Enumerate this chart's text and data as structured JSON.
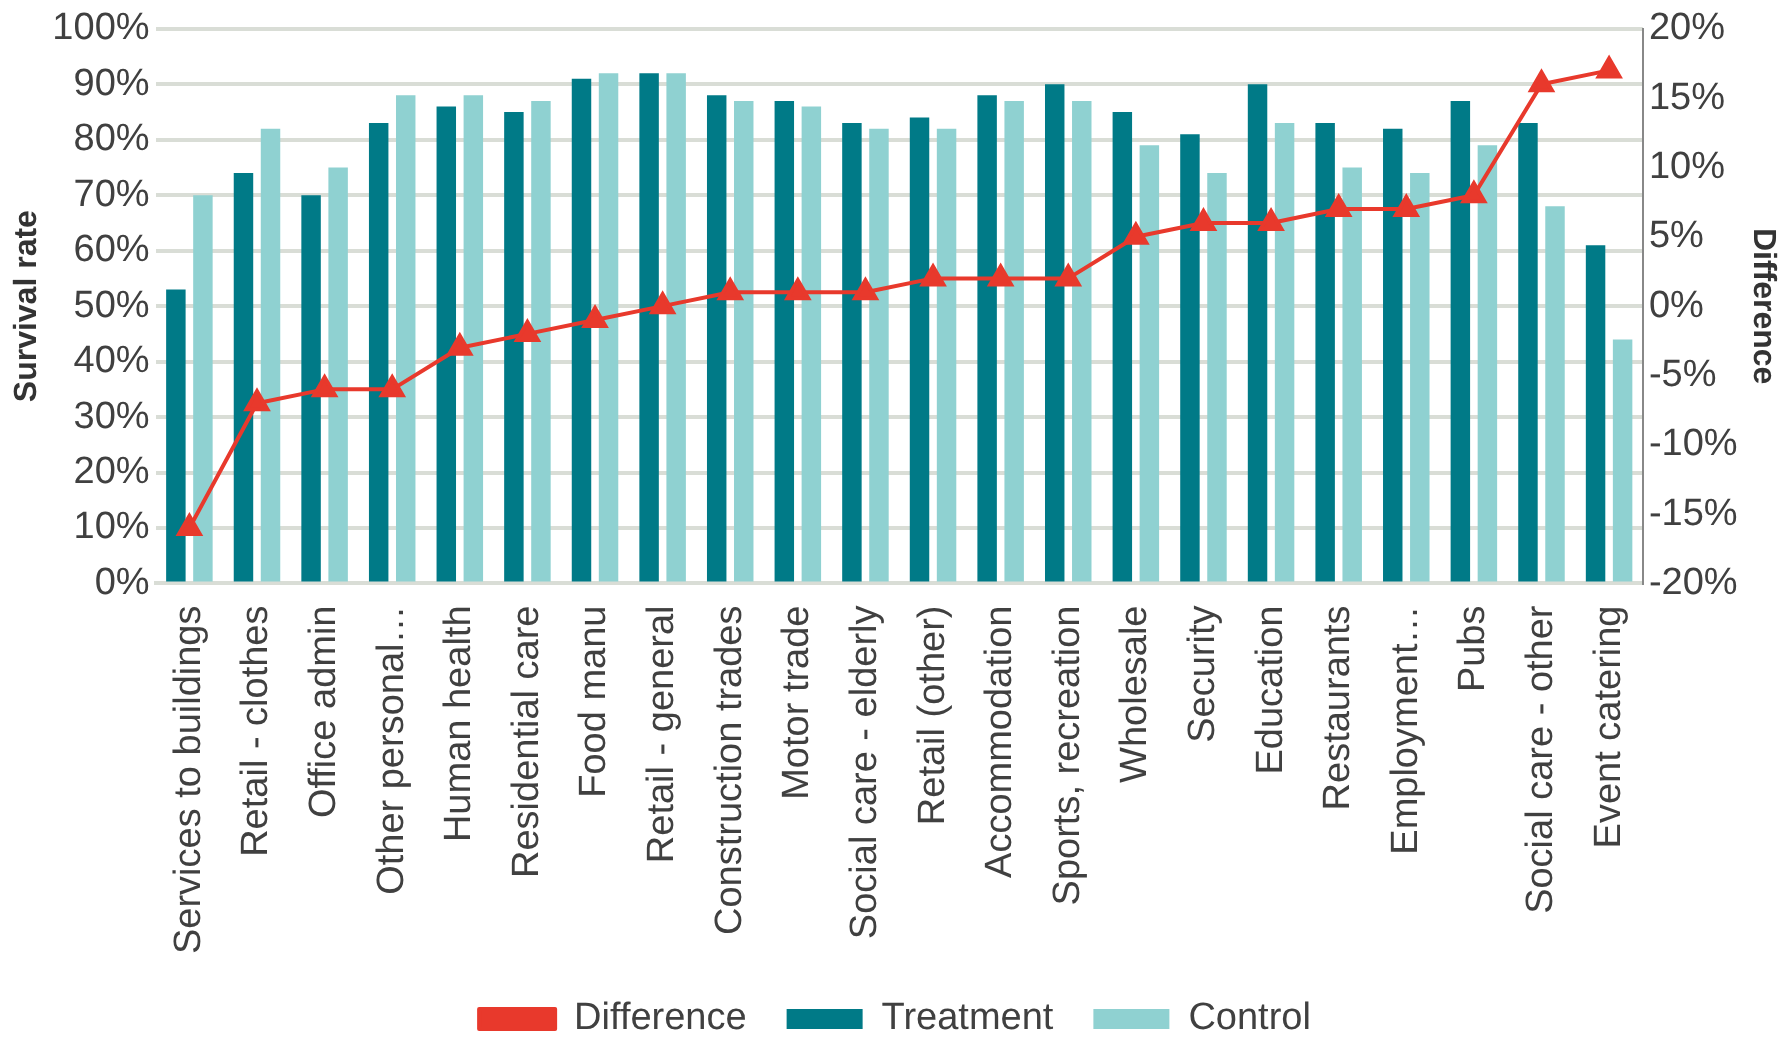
{
  "chart_data": {
    "type": "bar",
    "ylabel": "Survival rate",
    "y2label": "Difference",
    "categories": [
      "Services to buildings",
      "Retail - clothes",
      "Office admin",
      "Other personal…",
      "Human health",
      "Residential care",
      "Food manu",
      "Retail - general",
      "Construction trades",
      "Motor trade",
      "Social care - elderly",
      "Retail (other)",
      "Accommodation",
      "Sports, recreation",
      "Wholesale",
      "Security",
      "Education",
      "Restaurants",
      "Employment…",
      "Pubs",
      "Social care - other",
      "Event catering"
    ],
    "series": [
      {
        "name": "Treatment",
        "color": "#007a87",
        "values": [
          53,
          74,
          70,
          83,
          86,
          85,
          91,
          92,
          88,
          87,
          83,
          84,
          88,
          90,
          85,
          81,
          90,
          83,
          82,
          87,
          83,
          61
        ]
      },
      {
        "name": "Control",
        "color": "#8fd1d1",
        "values": [
          70,
          82,
          75,
          88,
          88,
          87,
          92,
          92,
          87,
          86,
          82,
          82,
          87,
          87,
          79,
          74,
          83,
          75,
          74,
          79,
          68,
          44
        ]
      },
      {
        "name": "Difference",
        "type": "line",
        "axis": "y2",
        "color": "#e8392c",
        "marker": "triangle",
        "values": [
          -16,
          -7,
          -6,
          -6,
          -3,
          -2,
          -1,
          0,
          1,
          1,
          1,
          2,
          2,
          2,
          5,
          6,
          6,
          7,
          7,
          8,
          16,
          17
        ]
      }
    ],
    "ylim": [
      0,
      100
    ],
    "yticks": [
      {
        "value": 0,
        "label": "0%"
      },
      {
        "value": 10,
        "label": "10%"
      },
      {
        "value": 20,
        "label": "20%"
      },
      {
        "value": 30,
        "label": "30%"
      },
      {
        "value": 40,
        "label": "40%"
      },
      {
        "value": 50,
        "label": "50%"
      },
      {
        "value": 60,
        "label": "60%"
      },
      {
        "value": 70,
        "label": "70%"
      },
      {
        "value": 80,
        "label": "80%"
      },
      {
        "value": 90,
        "label": "90%"
      },
      {
        "value": 100,
        "label": "100%"
      }
    ],
    "y2lim": [
      -20,
      20
    ],
    "y2ticks": [
      {
        "value": -20,
        "label": "-20%"
      },
      {
        "value": -15,
        "label": "-15%"
      },
      {
        "value": -10,
        "label": "-10%"
      },
      {
        "value": -5,
        "label": "-5%"
      },
      {
        "value": 0,
        "label": "0%"
      },
      {
        "value": 5,
        "label": "5%"
      },
      {
        "value": 10,
        "label": "10%"
      },
      {
        "value": 15,
        "label": "15%"
      },
      {
        "value": 20,
        "label": "20%"
      }
    ],
    "grid": "y",
    "legend": "bottom"
  }
}
